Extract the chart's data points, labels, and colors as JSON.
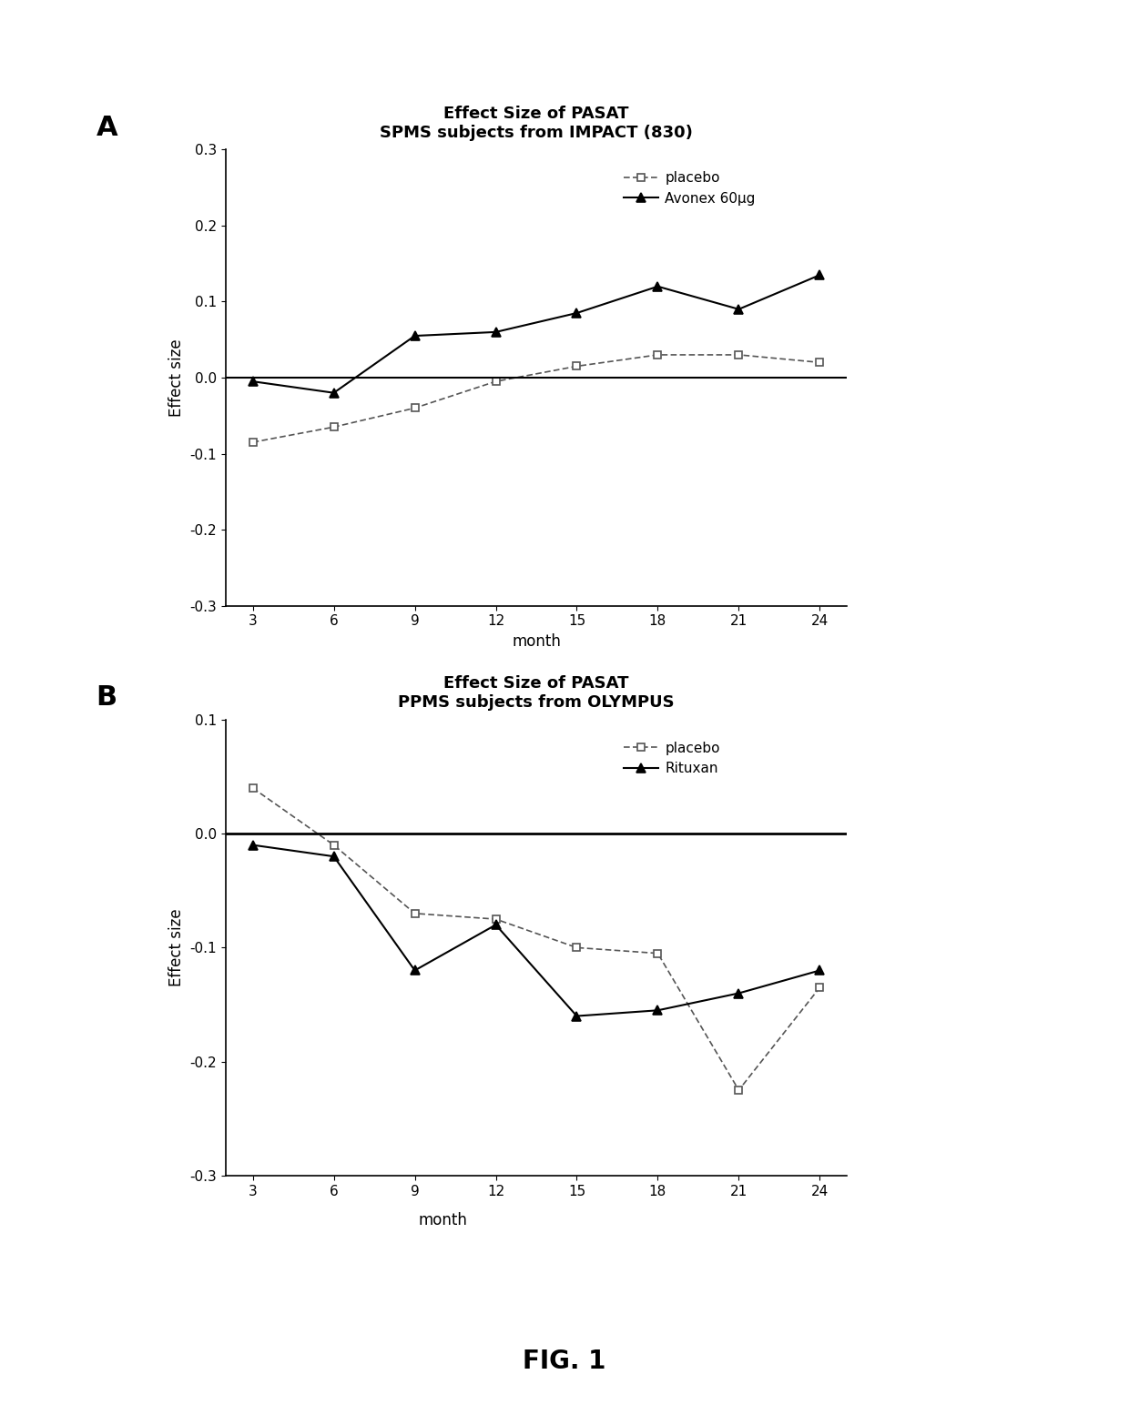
{
  "panel_A": {
    "title_line1": "Effect Size of PASAT",
    "title_line2": "SPMS subjects from IMPACT (830)",
    "xlabel": "month",
    "ylabel": "Effect size",
    "x": [
      3,
      6,
      9,
      12,
      15,
      18,
      21,
      24
    ],
    "placebo_y": [
      -0.085,
      -0.065,
      -0.04,
      -0.005,
      0.015,
      0.03,
      0.03,
      0.02
    ],
    "avonex_y": [
      -0.005,
      -0.02,
      0.055,
      0.06,
      0.085,
      0.12,
      0.09,
      0.135
    ],
    "ylim": [
      -0.3,
      0.3
    ],
    "yticks": [
      -0.3,
      -0.2,
      -0.1,
      0.0,
      0.1,
      0.2,
      0.3
    ],
    "xticks": [
      3,
      6,
      9,
      12,
      15,
      18,
      21,
      24
    ],
    "legend_placebo": "placebo",
    "legend_avonex": "Avonex 60μg"
  },
  "panel_B": {
    "title_line1": "Effect Size of PASAT",
    "title_line2": "PPMS subjects from OLYMPUS",
    "xlabel": "month",
    "ylabel": "Effect size",
    "x": [
      3,
      6,
      9,
      12,
      15,
      18,
      21,
      24
    ],
    "placebo_y": [
      0.04,
      -0.01,
      -0.07,
      -0.075,
      -0.1,
      -0.105,
      -0.225,
      -0.135
    ],
    "rituxan_y": [
      -0.01,
      -0.02,
      -0.12,
      -0.08,
      -0.16,
      -0.155,
      -0.14,
      -0.12
    ],
    "ylim": [
      -0.3,
      0.1
    ],
    "yticks": [
      -0.3,
      -0.2,
      -0.1,
      0.0,
      0.1
    ],
    "xticks": [
      3,
      6,
      9,
      12,
      15,
      18,
      21,
      24
    ],
    "legend_placebo": "placebo",
    "legend_rituxan": "Rituxan"
  },
  "fig_label": "FIG. 1",
  "line_color": "#000000",
  "background_color": "#ffffff"
}
